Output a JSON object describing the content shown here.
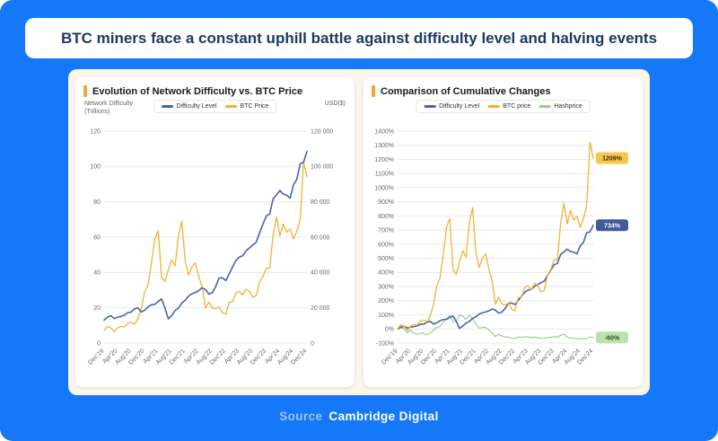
{
  "header": {
    "title": "BTC miners face a constant uphill battle against difficulty level and halving events"
  },
  "footer": {
    "source_label": "Source",
    "source_name": "Cambridge Digital"
  },
  "colors": {
    "background": "#1478f8",
    "panel": "#faf6ec",
    "card": "#ffffff",
    "accent_bar": "#f2a93b",
    "difficulty": "#4a63ad",
    "btc": "#f0b434",
    "hashprice": "#9ccf92",
    "badge_btc_bg": "#f6c64f",
    "badge_diff_bg": "#41599e",
    "badge_hash_bg": "#b9e2ad",
    "grid": "#e8e8e8",
    "axis_text": "#6b6b6b"
  },
  "chart_data": [
    {
      "type": "line",
      "title": "Evolution of Network Difficulty vs. BTC Price",
      "y_left_label": "Network Difficulty\n(Trillions)",
      "y_right_label": "USD($)",
      "ylim_left": [
        0,
        120
      ],
      "y_step_left": 20,
      "ylim_right": [
        0,
        120000
      ],
      "y_step_right": 20000,
      "grid": true,
      "legend_position": "top-center",
      "x_tick_labels": [
        "Dec'19",
        "Apr'20",
        "Aug'20",
        "Dec'20",
        "Apr'21",
        "Aug'21",
        "Dec'21",
        "Apr'22",
        "Aug'22",
        "Dec'22",
        "Apr'23",
        "Aug'23",
        "Dec'23",
        "Apr'24",
        "Aug'24",
        "Dec'24"
      ],
      "x_points_per_tick": 4,
      "series": [
        {
          "name": "Difficulty Level",
          "axis": "left",
          "unit": "trillions",
          "values": [
            13,
            14.7,
            15.5,
            13.9,
            14.7,
            15.1,
            15.8,
            17.3,
            17.6,
            19.3,
            20,
            17.6,
            18.6,
            20.6,
            21.7,
            21.9,
            23.6,
            25,
            19.9,
            13.7,
            15.6,
            18.4,
            19.9,
            22.7,
            24.2,
            26.7,
            27.9,
            28.6,
            29.8,
            31.3,
            30.3,
            27.7,
            28.6,
            32,
            36.8,
            36.9,
            35.4,
            39.2,
            43.1,
            46.8,
            48.7,
            49.5,
            52.3,
            53.9,
            55.6,
            57.1,
            62.5,
            67.3,
            72,
            73.2,
            81.7,
            83.9,
            86.4,
            84.4,
            83.7,
            82,
            89.5,
            92.7,
            101.6,
            102.3,
            108.5
          ]
        },
        {
          "name": "BTC Price",
          "axis": "right",
          "unit": "USD",
          "values": [
            7200,
            9350,
            8550,
            6450,
            8650,
            9450,
            9150,
            11350,
            11650,
            10800,
            13800,
            19700,
            29000,
            33100,
            45200,
            58900,
            63500,
            37300,
            35000,
            41500,
            47100,
            43800,
            61300,
            69000,
            46200,
            38500,
            43200,
            45500,
            37700,
            31800,
            19900,
            23300,
            20000,
            19400,
            20500,
            17200,
            16500,
            23100,
            23500,
            28500,
            29200,
            27200,
            30500,
            29200,
            26000,
            27000,
            34700,
            37700,
            42300,
            42600,
            61200,
            71300,
            60600,
            67500,
            62700,
            64600,
            59000,
            63300,
            70200,
            102300,
            94200
          ]
        }
      ]
    },
    {
      "type": "line",
      "title": "Comparison of Cumulative Changes",
      "ylim": [
        -100,
        1400
      ],
      "y_step": 100,
      "y_unit": "%",
      "grid": true,
      "legend_position": "top-center",
      "x_tick_labels": [
        "Dec'19",
        "Apr'20",
        "Aug'20",
        "Dec'20",
        "Apr'21",
        "Aug'21",
        "Dec'21",
        "Apr'22",
        "Aug'22",
        "Dec'22",
        "Apr'23",
        "Aug'23",
        "Dec'23",
        "Apr'24",
        "Aug'24",
        "Dec'24"
      ],
      "x_points_per_tick": 4,
      "series": [
        {
          "name": "Difficulty Level",
          "end_label": "734%",
          "values": [
            0,
            13,
            19,
            7,
            13,
            16,
            22,
            33,
            35,
            48,
            54,
            35,
            43,
            58,
            67,
            68,
            82,
            92,
            53,
            5,
            20,
            42,
            53,
            75,
            86,
            105,
            115,
            120,
            129,
            141,
            133,
            113,
            120,
            146,
            183,
            184,
            172,
            202,
            232,
            260,
            275,
            281,
            302,
            315,
            328,
            339,
            381,
            418,
            454,
            463,
            528,
            545,
            565,
            549,
            544,
            531,
            588,
            613,
            682,
            687,
            734
          ]
        },
        {
          "name": "BTC price",
          "end_label": "1209%",
          "values": [
            0,
            30,
            19,
            -10,
            20,
            31,
            27,
            58,
            62,
            50,
            92,
            174,
            303,
            360,
            528,
            718,
            782,
            418,
            386,
            476,
            554,
            508,
            751,
            858,
            542,
            435,
            500,
            532,
            424,
            342,
            176,
            224,
            178,
            169,
            185,
            139,
            129,
            221,
            226,
            296,
            306,
            278,
            324,
            306,
            261,
            275,
            382,
            424,
            488,
            492,
            750,
            890,
            742,
            838,
            771,
            797,
            719,
            779,
            875,
            1321,
            1209
          ]
        },
        {
          "name": "Hashprice",
          "end_label": "-60%",
          "values": [
            0,
            8,
            2,
            -28,
            -6,
            -32,
            -38,
            -28,
            -30,
            -42,
            -30,
            -8,
            12,
            18,
            48,
            72,
            95,
            50,
            58,
            98,
            92,
            68,
            98,
            72,
            35,
            6,
            10,
            12,
            -8,
            -28,
            -54,
            -38,
            -50,
            -56,
            -58,
            -66,
            -68,
            -58,
            -60,
            -56,
            -57,
            -61,
            -58,
            -62,
            -67,
            -66,
            -61,
            -59,
            -55,
            -58,
            -45,
            -38,
            -56,
            -64,
            -66,
            -67,
            -71,
            -69,
            -68,
            -57,
            -60
          ]
        }
      ]
    }
  ]
}
